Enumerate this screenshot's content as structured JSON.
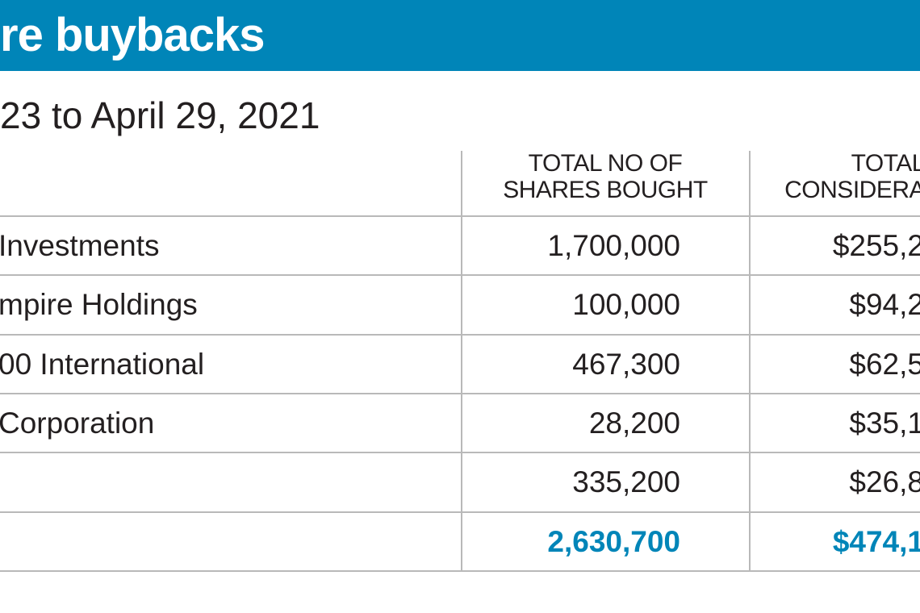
{
  "header": {
    "title": "re buybacks",
    "subtitle": "23 to April 29, 2021"
  },
  "table": {
    "columns": [
      [
        "TOTAL NO OF",
        "SHARES BOUGHT"
      ],
      [
        "TOTAL",
        "CONSIDERA"
      ]
    ],
    "rows": [
      {
        "company": "Investments",
        "shares": "1,700,000",
        "consideration": "$255,2"
      },
      {
        "company": "mpire Holdings",
        "shares": "100,000",
        "consideration": "$94,2"
      },
      {
        "company": "00 International",
        "shares": "467,300",
        "consideration": "$62,5"
      },
      {
        "company": "Corporation",
        "shares": "28,200",
        "consideration": "$35,1"
      },
      {
        "shares": "335,200",
        "consideration": "$26,8"
      },
      {
        "shares": "2,630,700",
        "consideration": "$474,1"
      }
    ]
  }
}
